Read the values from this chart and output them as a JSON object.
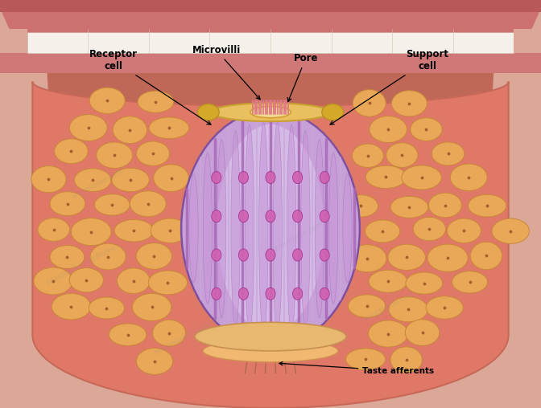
{
  "figsize": [
    6.72,
    5.08
  ],
  "dpi": 100,
  "bg_skin": "#dba898",
  "bg_throat": "#c87060",
  "lip_color": "#c05050",
  "lip_lower": "#d06060",
  "teeth_color": "#f5f0ea",
  "tongue_body": "#e07868",
  "tongue_edge": "#c86858",
  "cell_fill": "#e8a858",
  "cell_edge": "#c88838",
  "cell_dot": "#a05828",
  "tb_outer": "#b890c8",
  "tb_mid": "#c8a0d8",
  "tb_inner": "#d8b8e8",
  "tb_light_center": "#e0d0f0",
  "cell_line_dark": "#a868b8",
  "cell_line_light": "#c8a8d8",
  "nucleus_fill": "#d060b0",
  "nucleus_edge": "#a03090",
  "pore_fill": "#f0d090",
  "pore_edge": "#d4a030",
  "mv_color": "#e07888",
  "support_fill": "#e8b870",
  "support_edge": "#c89050",
  "nerve_color": "#a06848",
  "ann_font": 8.5,
  "watermark_texts": [
    "aroadtome.com",
    "bookmark.aroadtome.com",
    "aroadtome.com"
  ]
}
